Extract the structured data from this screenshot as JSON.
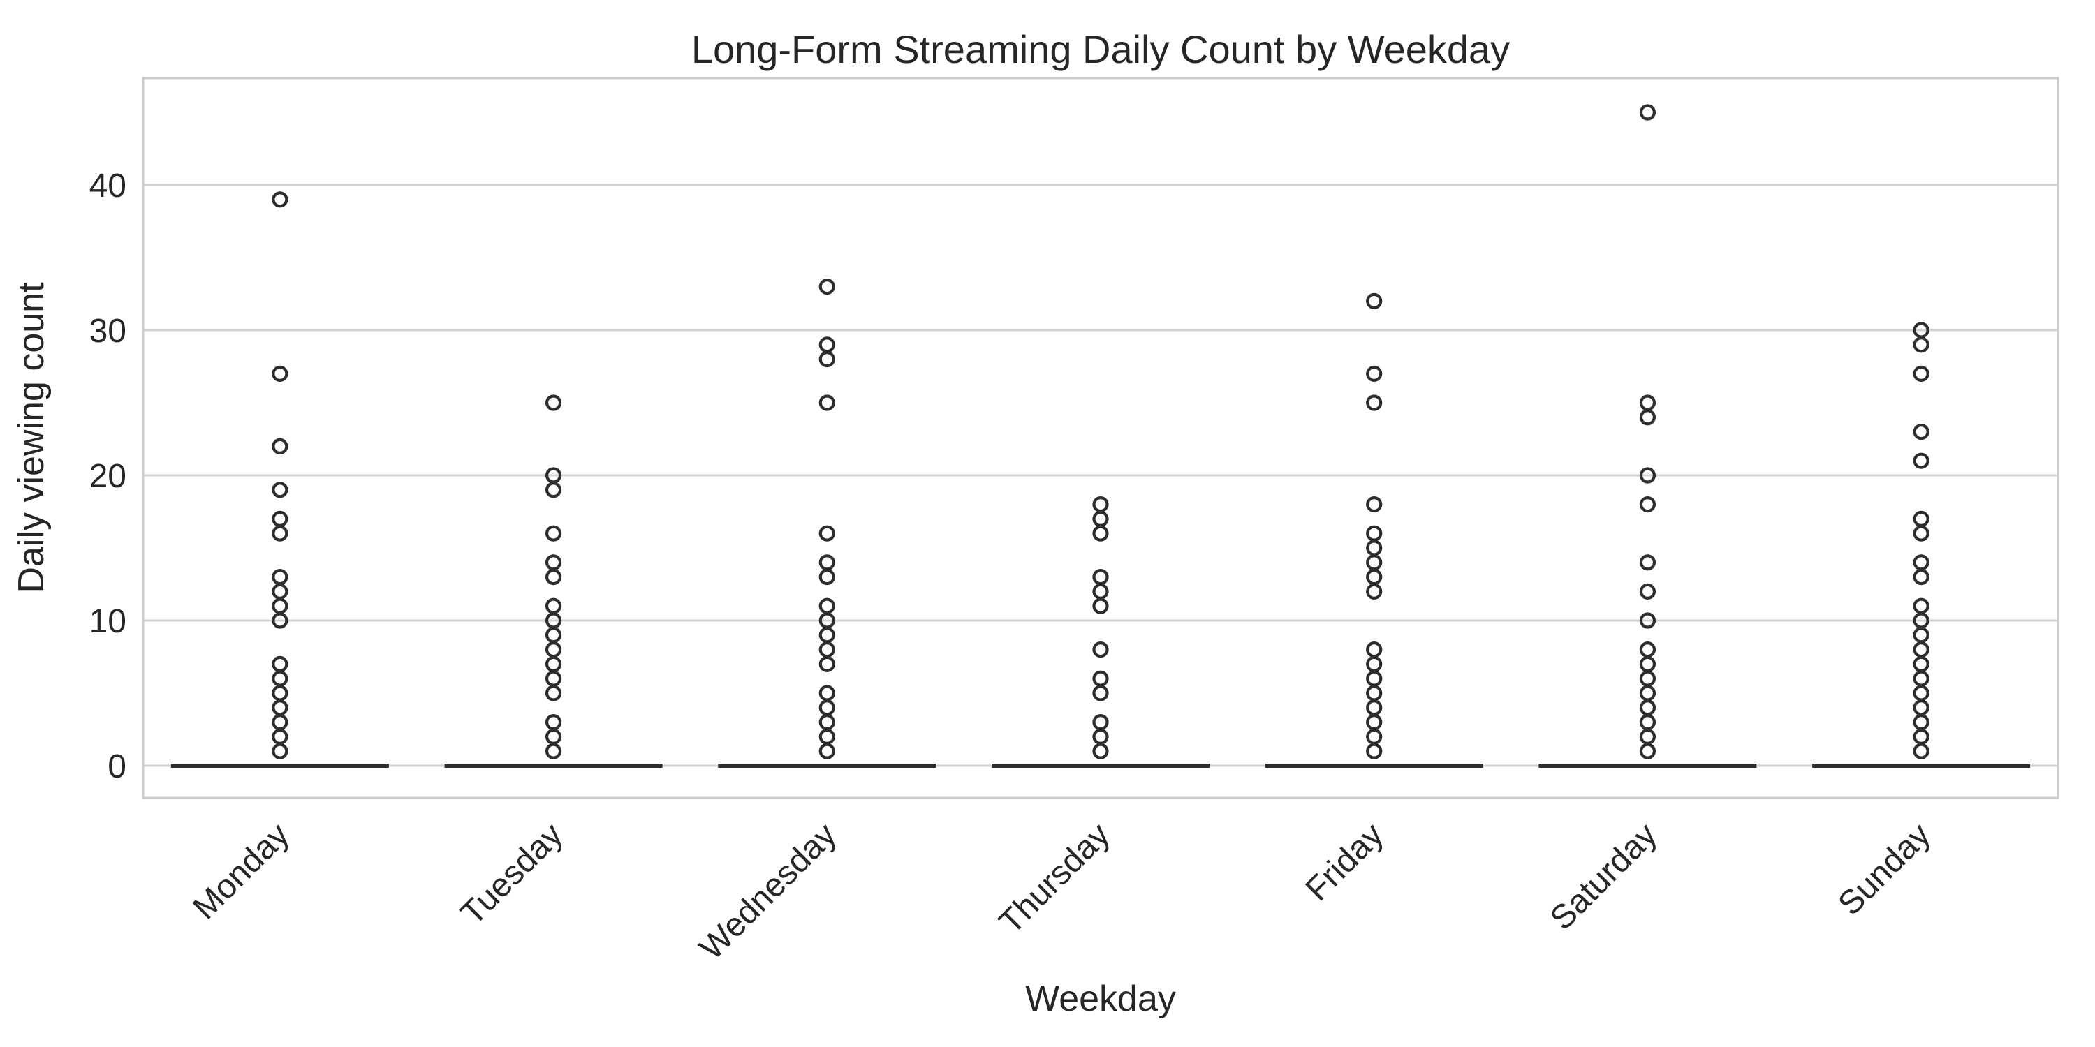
{
  "figure": {
    "background": "#ffffff"
  },
  "chart_data": {
    "type": "boxplot",
    "title": "Long-Form Streaming Daily Count by Weekday",
    "xlabel": "Weekday",
    "ylabel": "Daily viewing count",
    "categories": [
      "Monday",
      "Tuesday",
      "Wednesday",
      "Thursday",
      "Friday",
      "Saturday",
      "Sunday"
    ],
    "yticks": [
      0,
      10,
      20,
      30,
      40
    ],
    "ylim": [
      -2.25,
      47.25
    ],
    "grid": "horizontal",
    "legend": "none",
    "note": "All quartiles and whiskers equal 0 for every weekday, so each box collapses to a thick dark line at y=0; every non-zero value appears as an open-circle outlier.",
    "series": [
      {
        "name": "Monday",
        "box": {
          "median": 0,
          "q1": 0,
          "q3": 0,
          "whisker_low": 0,
          "whisker_high": 0
        },
        "outliers": [
          1,
          2,
          3,
          4,
          5,
          6,
          7,
          10,
          11,
          12,
          13,
          16,
          17,
          19,
          22,
          27,
          39
        ]
      },
      {
        "name": "Tuesday",
        "box": {
          "median": 0,
          "q1": 0,
          "q3": 0,
          "whisker_low": 0,
          "whisker_high": 0
        },
        "outliers": [
          1,
          2,
          3,
          5,
          6,
          7,
          8,
          9,
          10,
          11,
          13,
          14,
          16,
          19,
          20,
          25
        ]
      },
      {
        "name": "Wednesday",
        "box": {
          "median": 0,
          "q1": 0,
          "q3": 0,
          "whisker_low": 0,
          "whisker_high": 0
        },
        "outliers": [
          1,
          2,
          3,
          4,
          5,
          7,
          8,
          9,
          10,
          11,
          13,
          14,
          16,
          25,
          28,
          29,
          33
        ]
      },
      {
        "name": "Thursday",
        "box": {
          "median": 0,
          "q1": 0,
          "q3": 0,
          "whisker_low": 0,
          "whisker_high": 0
        },
        "outliers": [
          1,
          2,
          3,
          5,
          6,
          8,
          11,
          12,
          13,
          16,
          17,
          18
        ]
      },
      {
        "name": "Friday",
        "box": {
          "median": 0,
          "q1": 0,
          "q3": 0,
          "whisker_low": 0,
          "whisker_high": 0
        },
        "outliers": [
          1,
          2,
          3,
          4,
          5,
          6,
          7,
          8,
          12,
          13,
          14,
          15,
          16,
          18,
          25,
          27,
          32
        ]
      },
      {
        "name": "Saturday",
        "box": {
          "median": 0,
          "q1": 0,
          "q3": 0,
          "whisker_low": 0,
          "whisker_high": 0
        },
        "outliers": [
          1,
          2,
          3,
          4,
          5,
          6,
          7,
          8,
          10,
          12,
          14,
          18,
          20,
          24,
          25,
          45
        ]
      },
      {
        "name": "Sunday",
        "box": {
          "median": 0,
          "q1": 0,
          "q3": 0,
          "whisker_low": 0,
          "whisker_high": 0
        },
        "outliers": [
          1,
          2,
          3,
          4,
          5,
          6,
          7,
          8,
          9,
          10,
          11,
          13,
          14,
          16,
          17,
          21,
          23,
          27,
          29,
          30
        ]
      }
    ],
    "style": {
      "marker": "open-circle",
      "marker_color": "#2d2d2d",
      "box_line_color": "#2d2d2d",
      "grid_color": "#d2d2d2",
      "spine_color": "#cccccc",
      "text_color": "#262626"
    }
  }
}
